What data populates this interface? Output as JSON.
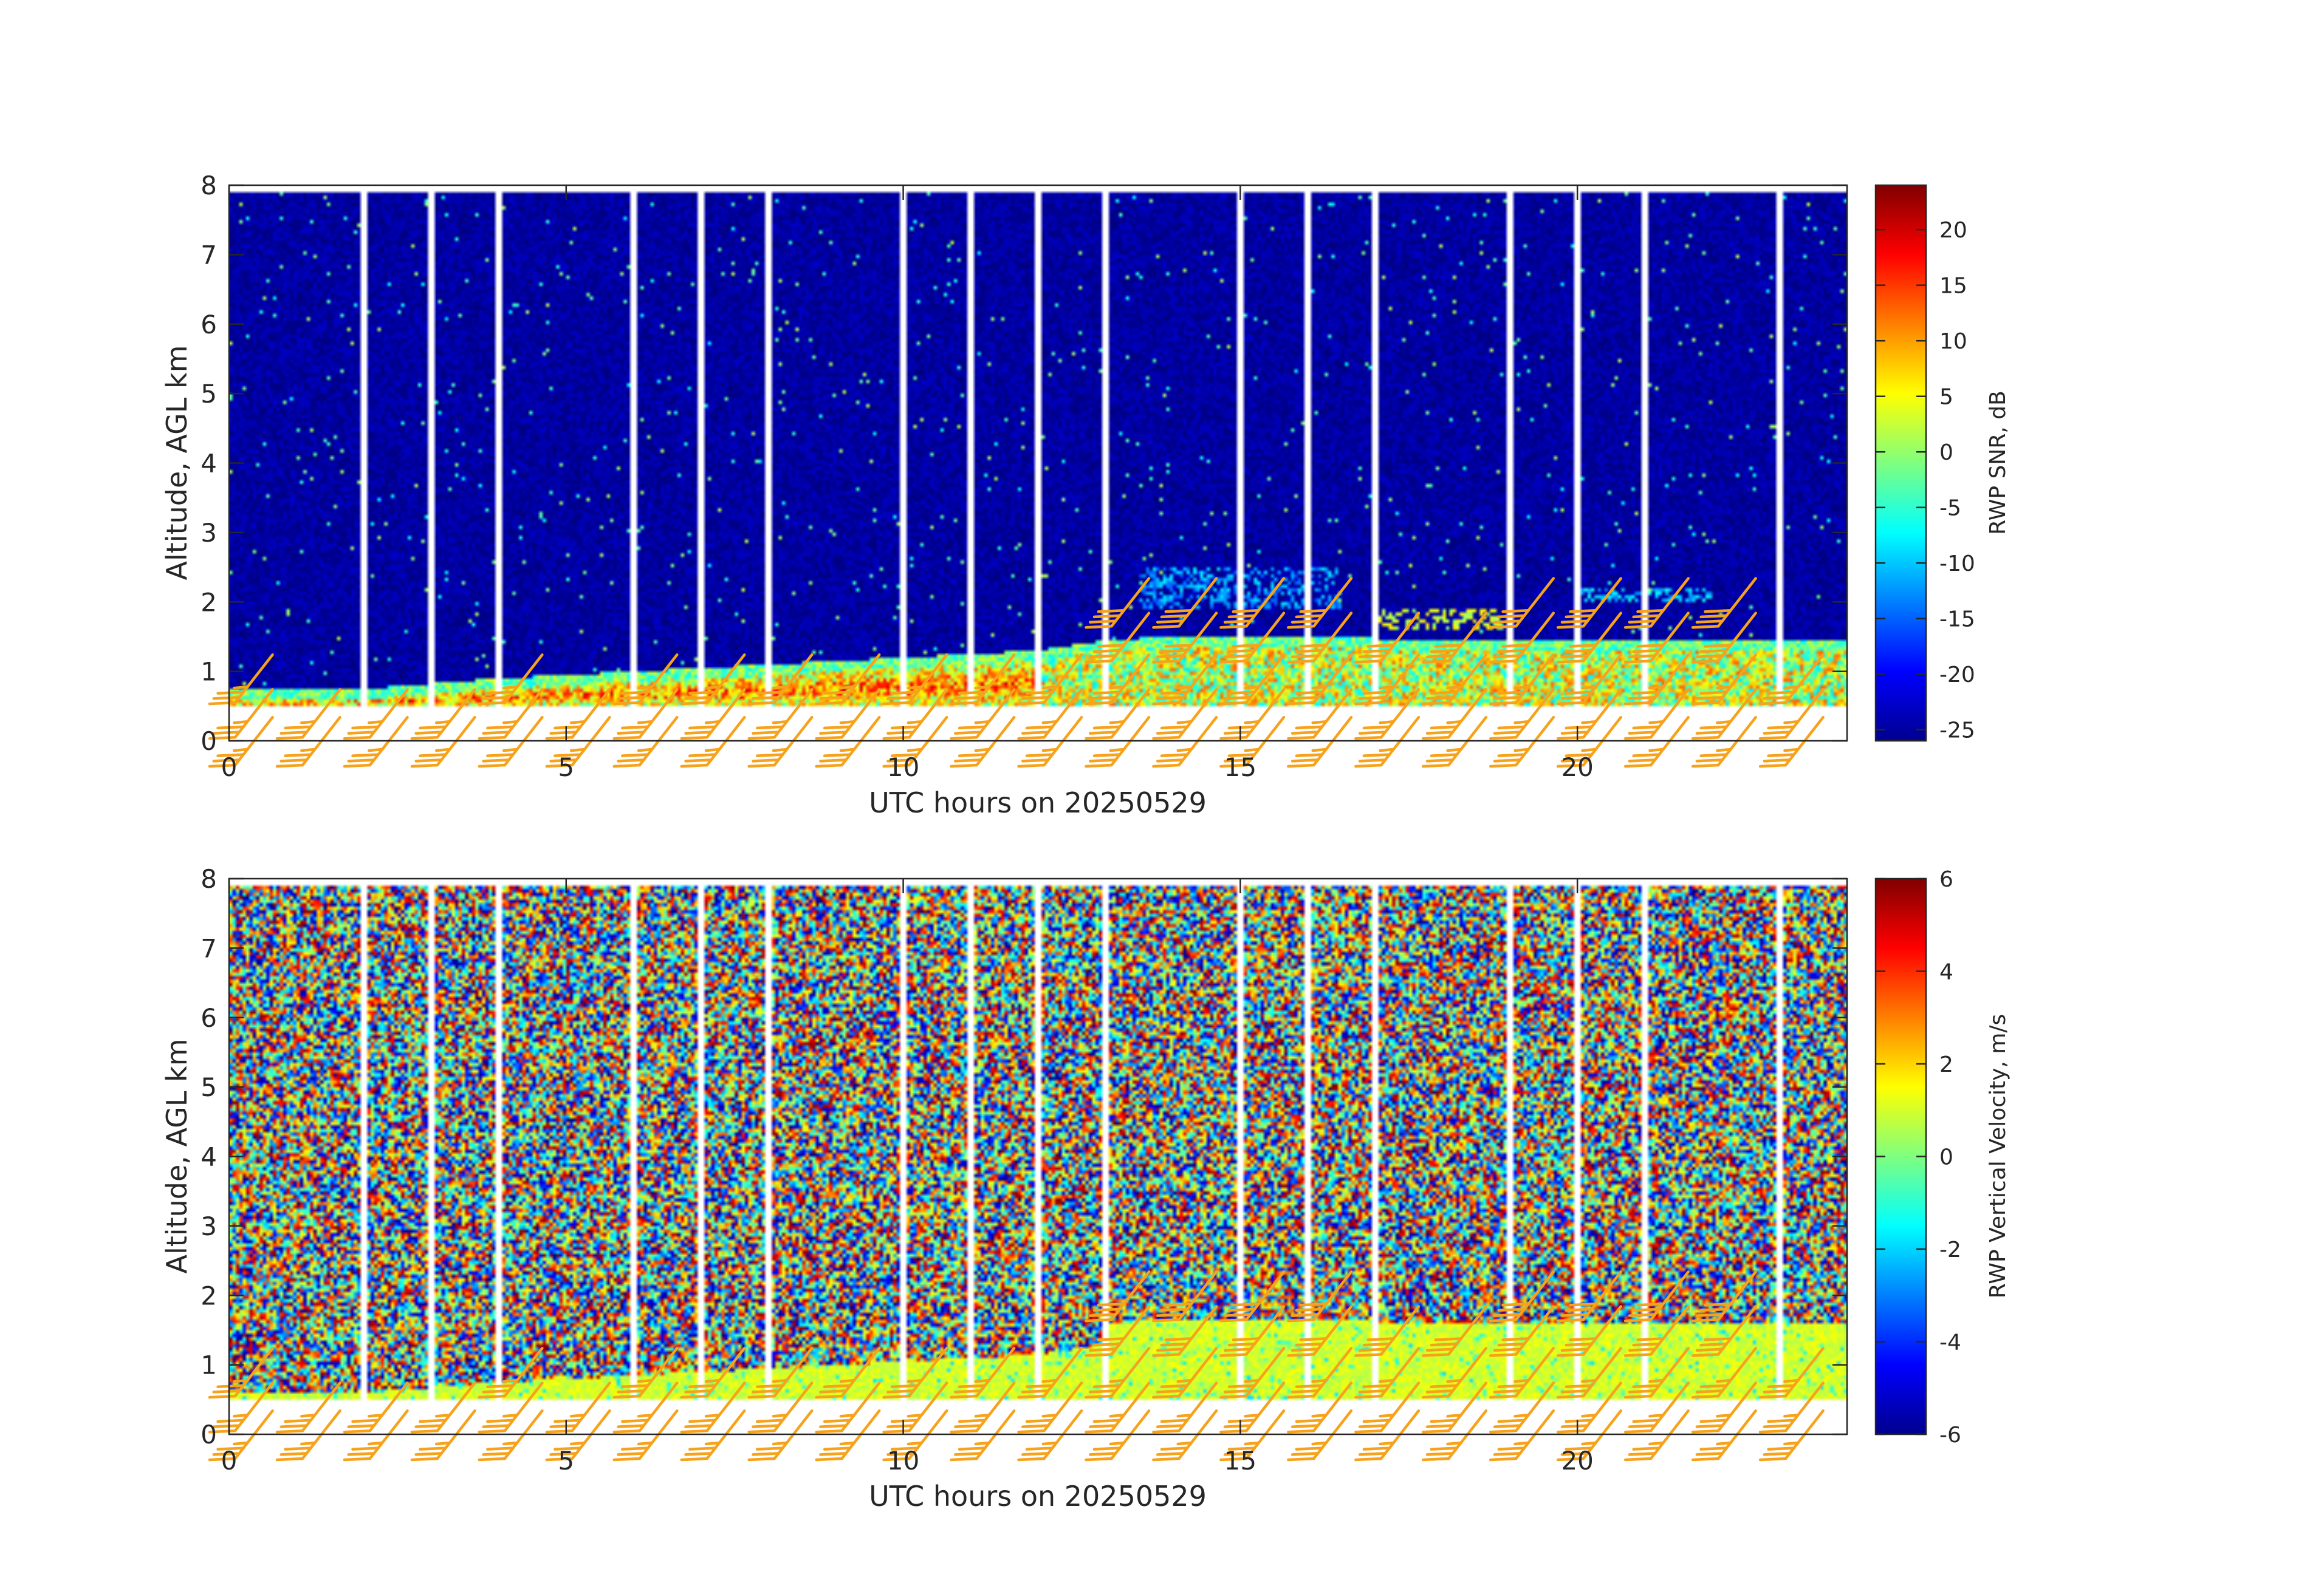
{
  "chart_data": [
    {
      "type": "heatmap",
      "id": "snr",
      "xlabel": "UTC hours on 20250529",
      "ylabel": "Altitude, AGL km",
      "xlim": [
        0,
        24
      ],
      "ylim": [
        0,
        8
      ],
      "xticks": [
        0,
        5,
        10,
        15,
        20
      ],
      "yticks": [
        0,
        1,
        2,
        3,
        4,
        5,
        6,
        7,
        8
      ],
      "data_altitude_range_km": [
        0.5,
        7.9
      ],
      "colormap": "jet",
      "colorbar": {
        "label": "RWP SNR, dB",
        "range": [
          -26,
          24
        ],
        "ticks": [
          20,
          15,
          10,
          5,
          0,
          -5,
          -10,
          -15,
          -20,
          -25
        ]
      },
      "background_level": -24,
      "profile_gap_hours": [
        2,
        3,
        4,
        6,
        7,
        8,
        10,
        11,
        12,
        13,
        15,
        16,
        17,
        19,
        20,
        21,
        23
      ],
      "boundary_layer_top_km": {
        "hours": [
          0,
          2,
          4,
          6,
          8,
          10,
          12,
          13,
          14,
          16,
          18,
          20,
          22,
          24
        ],
        "values": [
          0.6,
          0.6,
          0.75,
          0.85,
          0.95,
          1.05,
          1.15,
          1.3,
          1.35,
          1.35,
          1.3,
          1.3,
          1.3,
          1.3
        ]
      },
      "layer_snr_dB": {
        "core": 12,
        "edge": 0
      },
      "elevated_features": [
        {
          "hours": [
            13.5,
            16.5
          ],
          "altitude_km": [
            1.9,
            2.5
          ],
          "snr_dB": -12
        },
        {
          "hours": [
            17,
            19
          ],
          "altitude_km": [
            1.6,
            1.9
          ],
          "snr_dB": 3
        },
        {
          "hours": [
            20,
            22
          ],
          "altitude_km": [
            2.0,
            2.2
          ],
          "snr_dB": -10
        }
      ]
    },
    {
      "type": "heatmap",
      "id": "velocity",
      "xlabel": "UTC hours on 20250529",
      "ylabel": "Altitude, AGL km",
      "xlim": [
        0,
        24
      ],
      "ylim": [
        0,
        8
      ],
      "xticks": [
        0,
        5,
        10,
        15,
        20
      ],
      "yticks": [
        0,
        1,
        2,
        3,
        4,
        5,
        6,
        7,
        8
      ],
      "data_altitude_range_km": [
        0.5,
        7.9
      ],
      "colormap": "jet",
      "colorbar": {
        "label": "RWP Vertical Velocity, m/s",
        "range": [
          -6,
          6
        ],
        "ticks": [
          6,
          4,
          2,
          0,
          -2,
          -4,
          -6
        ]
      },
      "noise_range_m_s": [
        -6,
        6
      ],
      "boundary_layer_velocity_m_s": [
        0.5,
        1.5
      ],
      "profile_gap_hours": [
        2,
        3,
        4,
        6,
        7,
        8,
        10,
        11,
        12,
        13,
        15,
        16,
        17,
        19,
        20,
        21,
        23
      ]
    }
  ],
  "wind_barbs": {
    "color": "#f7a21b",
    "description": "southwesterly wind barbs plotted hourly at several altitudes",
    "levels": [
      {
        "altitude_km": 0,
        "hours": [
          0,
          1,
          2,
          3,
          4,
          5,
          6,
          7,
          8,
          9,
          10,
          11,
          12,
          13,
          14,
          15,
          16,
          17,
          18,
          19,
          20,
          21,
          22,
          23
        ],
        "speed_kt": 25
      },
      {
        "altitude_km": 0.4,
        "hours": [
          0,
          1,
          2,
          3,
          4,
          5,
          6,
          7,
          8,
          9,
          10,
          11,
          12,
          13,
          14,
          15,
          16,
          17,
          18,
          19,
          20,
          21,
          22,
          23
        ],
        "speed_kt": 25
      },
      {
        "altitude_km": 0.9,
        "hours": [
          0,
          4,
          6,
          7,
          8,
          9,
          10,
          11,
          12,
          13,
          14,
          15,
          16,
          17,
          18,
          19,
          20,
          21,
          22,
          23
        ],
        "speed_kt": 25
      },
      {
        "altitude_km": 1.5,
        "hours": [
          13,
          14,
          15,
          16,
          17,
          18,
          19,
          20,
          21,
          22
        ],
        "speed_kt": 30
      },
      {
        "altitude_km": 2.0,
        "hours": [
          13,
          14,
          15,
          16,
          19,
          20,
          21,
          22
        ],
        "speed_kt": 30
      }
    ]
  }
}
